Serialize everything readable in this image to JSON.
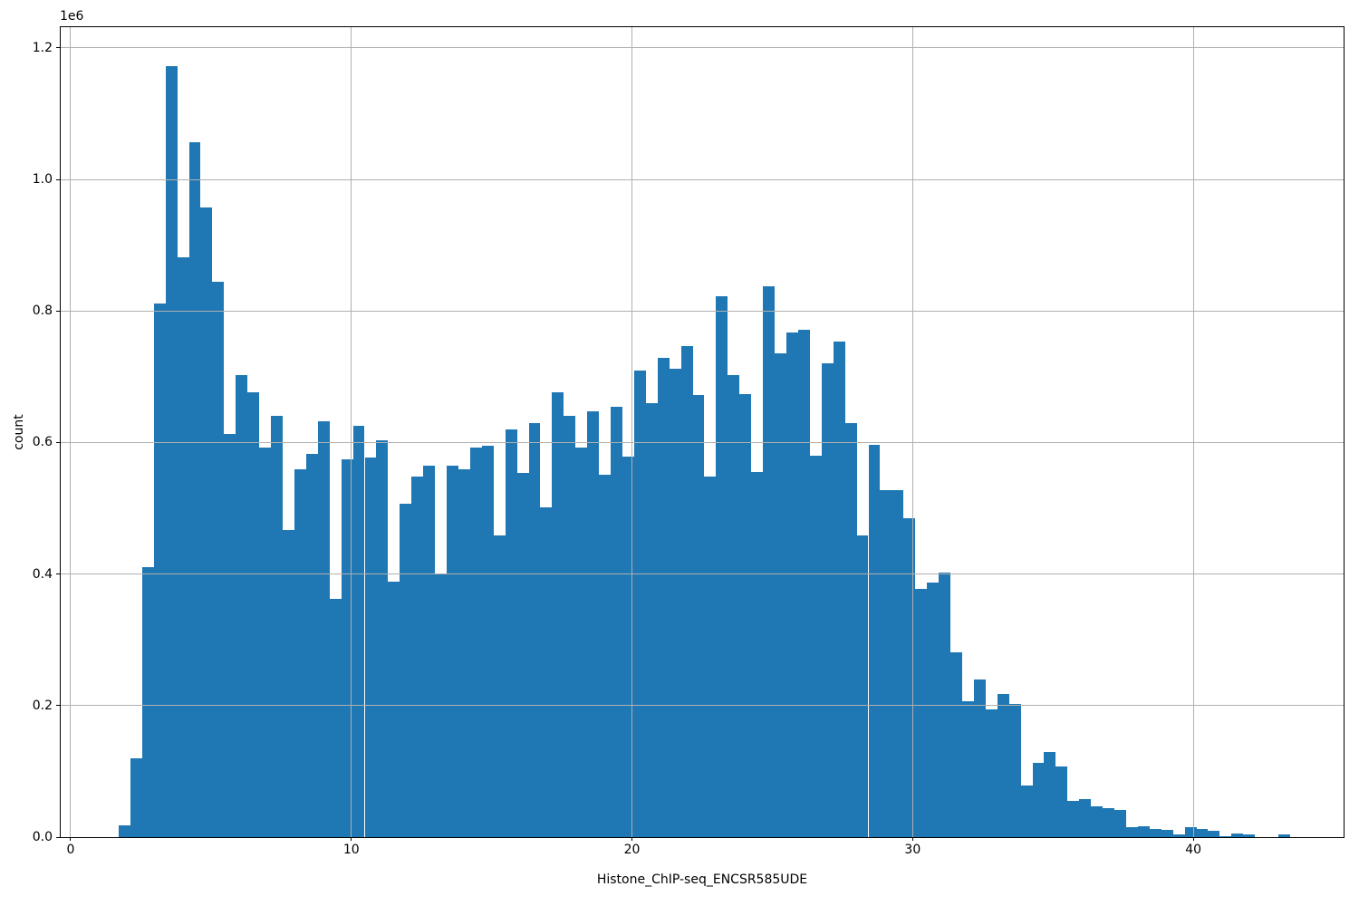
{
  "figure": {
    "background_color": "#ffffff",
    "spine_color": "#000000",
    "text_color": "#000000"
  },
  "chart_data": {
    "type": "bar",
    "subtype": "histogram",
    "title": "",
    "xlabel": "Histone_ChIP-seq_ENCSR585UDE",
    "ylabel": "count",
    "offset_text": "1e6",
    "grid": true,
    "legend_position": "none",
    "bar_color": "#1f77b4",
    "grid_color": "#b0b0b0",
    "xlim": [
      -0.355,
      45.355
    ],
    "ylim": [
      0,
      1231600
    ],
    "x_tick_labels": [
      "0",
      "10",
      "20",
      "30",
      "40"
    ],
    "x_tick_values": [
      0,
      10,
      20,
      30,
      40
    ],
    "y_tick_labels": [
      "0.0",
      "0.2",
      "0.4",
      "0.6",
      "0.8",
      "1.0",
      "1.2"
    ],
    "y_tick_values": [
      0,
      200000,
      400000,
      600000,
      800000,
      1000000,
      1200000
    ],
    "bin_start": 1.71,
    "bin_width": 0.4174,
    "counts": [
      18000,
      120000,
      410000,
      812000,
      1172000,
      882000,
      1056000,
      958000,
      845000,
      613000,
      702000,
      677000,
      593000,
      640000,
      467000,
      559000,
      583000,
      632000,
      363000,
      575000,
      625000,
      577000,
      604000,
      388000,
      507000,
      549000,
      565000,
      399000,
      565000,
      560000,
      592000,
      595000,
      459000,
      620000,
      554000,
      630000,
      502000,
      677000,
      641000,
      592000,
      648000,
      551000,
      655000,
      578000,
      710000,
      660000,
      729000,
      712000,
      747000,
      672000,
      548000,
      823000,
      703000,
      673000,
      555000,
      838000,
      735000,
      768000,
      771000,
      580000,
      721000,
      754000,
      630000,
      459000,
      597000,
      527000,
      528000,
      485000,
      377000,
      387000,
      402000,
      281000,
      206000,
      240000,
      194000,
      217000,
      202000,
      78000,
      113000,
      130000,
      107000,
      55000,
      58000,
      47000,
      44000,
      41000,
      15000,
      16000,
      13000,
      11000,
      4000,
      15000,
      12000,
      9000,
      1000,
      6000,
      4000,
      0,
      0,
      4000
    ]
  }
}
